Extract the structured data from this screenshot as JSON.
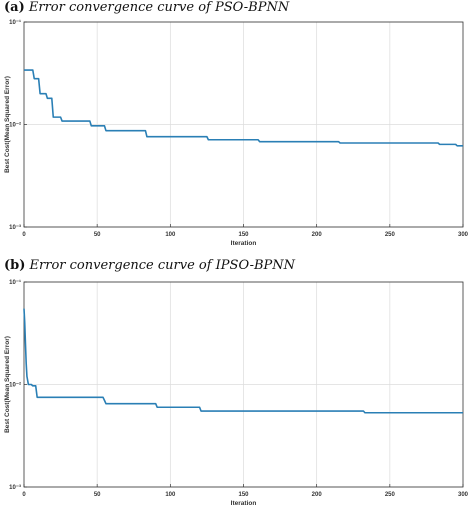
{
  "panels": [
    {
      "caption_letter": "(a)",
      "caption_text": "Error convergence curve of PSO-BPNN"
    },
    {
      "caption_letter": "(b)",
      "caption_text": "Error convergence curve of IPSO-BPNN"
    }
  ],
  "chart_data": [
    {
      "type": "line",
      "title": "",
      "xlabel": "Iteration",
      "ylabel": "Best Cost(Mean Squared Error)",
      "xlim": [
        0,
        300
      ],
      "ylim": [
        0.001,
        0.1
      ],
      "yscale": "log",
      "xticks": [
        0,
        50,
        100,
        150,
        200,
        250,
        300
      ],
      "yticks": [
        0.1,
        0.01,
        0.001
      ],
      "ytick_labels": [
        "10⁻¹",
        "10⁻²",
        "10⁻³"
      ],
      "grid": true,
      "line_color": "#2a7fb5",
      "series": [
        {
          "x": [
            0,
            6,
            7,
            10,
            11,
            15,
            16,
            19,
            20,
            25,
            26,
            45,
            46,
            55,
            56,
            83,
            84,
            125,
            126,
            160,
            161,
            215,
            216,
            283,
            284,
            295,
            296,
            300
          ],
          "y": [
            0.034,
            0.034,
            0.028,
            0.028,
            0.02,
            0.02,
            0.018,
            0.018,
            0.0118,
            0.0118,
            0.0108,
            0.0108,
            0.0097,
            0.0097,
            0.0087,
            0.0087,
            0.0076,
            0.0076,
            0.0071,
            0.0071,
            0.0068,
            0.0068,
            0.0066,
            0.0066,
            0.0064,
            0.0064,
            0.0062,
            0.0062
          ]
        }
      ]
    },
    {
      "type": "line",
      "title": "",
      "xlabel": "Iteration",
      "ylabel": "Best Cost(Mean Squared Error)",
      "xlim": [
        0,
        300
      ],
      "ylim": [
        0.001,
        0.1
      ],
      "yscale": "log",
      "xticks": [
        0,
        50,
        100,
        150,
        200,
        250,
        300
      ],
      "yticks": [
        0.1,
        0.01,
        0.001
      ],
      "ytick_labels": [
        "10⁻¹",
        "10⁻²",
        "10⁻³"
      ],
      "grid": true,
      "line_color": "#2a7fb5",
      "series": [
        {
          "x": [
            0,
            0.5,
            1,
            1.5,
            2,
            3,
            4,
            5,
            6,
            8,
            9,
            54,
            55,
            56,
            90,
            91,
            120,
            121,
            232,
            233,
            300
          ],
          "y": [
            0.055,
            0.04,
            0.025,
            0.016,
            0.012,
            0.01,
            0.01,
            0.01,
            0.0097,
            0.0097,
            0.0075,
            0.0075,
            0.007,
            0.0065,
            0.0065,
            0.006,
            0.006,
            0.0055,
            0.0055,
            0.0053,
            0.0053
          ]
        }
      ]
    }
  ]
}
